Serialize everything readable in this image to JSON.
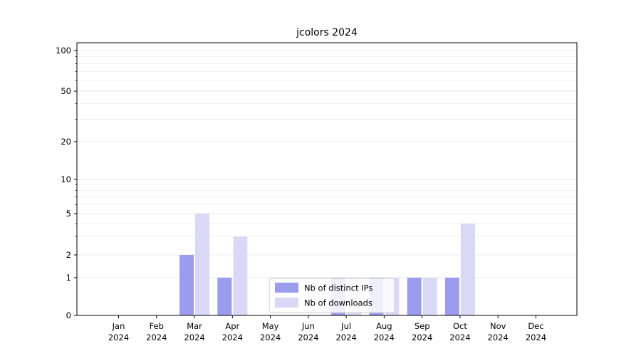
{
  "chart": {
    "title": "jcolors 2024"
  },
  "chart_data": {
    "type": "bar",
    "title": "jcolors 2024",
    "categories": [
      {
        "month": "Jan",
        "year": "2024"
      },
      {
        "month": "Feb",
        "year": "2024"
      },
      {
        "month": "Mar",
        "year": "2024"
      },
      {
        "month": "Apr",
        "year": "2024"
      },
      {
        "month": "May",
        "year": "2024"
      },
      {
        "month": "Jun",
        "year": "2024"
      },
      {
        "month": "Jul",
        "year": "2024"
      },
      {
        "month": "Aug",
        "year": "2024"
      },
      {
        "month": "Sep",
        "year": "2024"
      },
      {
        "month": "Oct",
        "year": "2024"
      },
      {
        "month": "Nov",
        "year": "2024"
      },
      {
        "month": "Dec",
        "year": "2024"
      }
    ],
    "series": [
      {
        "name": "Nb of distinct IPs",
        "color": "#9c9cef",
        "values": [
          0,
          0,
          2,
          1,
          0,
          0,
          1,
          1,
          1,
          1,
          0,
          0
        ]
      },
      {
        "name": "Nb of downloads",
        "color": "#d9d9f7",
        "values": [
          0,
          0,
          5,
          3,
          0,
          0,
          1,
          1,
          1,
          4,
          0,
          0
        ]
      }
    ],
    "yscale": "log above 1, linear between 0 and 1",
    "ytick_values": [
      0,
      1,
      2,
      5,
      10,
      20,
      50,
      100
    ],
    "ytick_labels": [
      "0",
      "1",
      "2",
      "5",
      "10",
      "20",
      "50",
      "100"
    ],
    "minor_grid_values": [
      3,
      4,
      6,
      7,
      8,
      9,
      30,
      40,
      60,
      70,
      80,
      90
    ],
    "ylim": [
      0,
      100
    ],
    "xlabel": "",
    "ylabel": "",
    "grid": "horizontal major + minor, light gray",
    "legend": {
      "position": "lower center, inside plot area",
      "entries": [
        "Nb of distinct IPs",
        "Nb of downloads"
      ]
    },
    "colors": {
      "spine": "#000000",
      "major_grid": "#e3e3e3",
      "minor_grid": "#ededed",
      "legend_border": "#cfcfcf",
      "legend_background": "#ffffff"
    }
  }
}
